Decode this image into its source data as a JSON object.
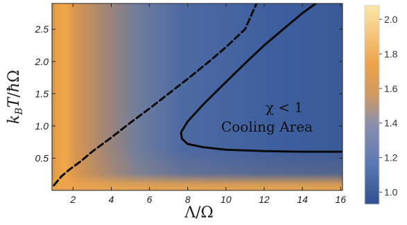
{
  "chart_data": {
    "type": "heatmap",
    "xlabel": "Λ/Ω",
    "ylabel": "k_B T/ħΩ",
    "xlim": [
      0.9,
      16.1
    ],
    "ylim": [
      0.0,
      2.9
    ],
    "x_ticks": [
      "2",
      "4",
      "6",
      "8",
      "10",
      "12",
      "14",
      "16"
    ],
    "y_ticks": [
      "0.5",
      "1.0",
      "1.5",
      "2.0",
      "2.5"
    ],
    "colorbar": {
      "range": [
        0.93,
        2.08
      ],
      "ticks": [
        "1.0",
        "1.2",
        "1.4",
        "1.6",
        "1.8",
        "2.0"
      ],
      "low_color": "#2f4f8f",
      "mid_color": "#6f8fc0",
      "high_color": "#fbe8a6",
      "accent_color": "#e9a14a"
    },
    "series": [
      {
        "style": "dashed",
        "x": [
          1.0,
          1.4,
          1.8,
          2.4,
          3.0,
          4.0,
          5.0,
          6.0,
          7.0,
          8.0,
          9.0,
          10.0,
          11.0,
          11.6
        ],
        "y": [
          0.08,
          0.22,
          0.32,
          0.45,
          0.6,
          0.82,
          1.05,
          1.27,
          1.5,
          1.73,
          1.97,
          2.22,
          2.5,
          2.9
        ]
      },
      {
        "style": "solid",
        "x": [
          16.1,
          14.0,
          12.0,
          10.0,
          8.8,
          8.0,
          7.7,
          7.65,
          8.0,
          8.8,
          10.0,
          11.0,
          12.0,
          13.0,
          14.0,
          14.7
        ],
        "y": [
          0.6,
          0.6,
          0.61,
          0.63,
          0.67,
          0.72,
          0.8,
          0.9,
          1.07,
          1.33,
          1.68,
          1.97,
          2.25,
          2.5,
          2.75,
          2.9
        ]
      }
    ],
    "annotations": [
      "χ < 1",
      "Cooling Area"
    ]
  }
}
